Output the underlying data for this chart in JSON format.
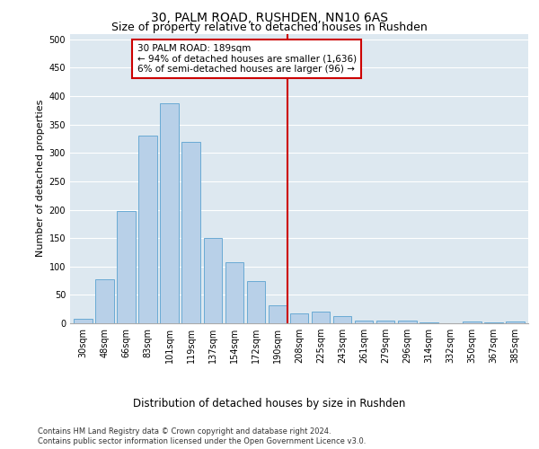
{
  "title": "30, PALM ROAD, RUSHDEN, NN10 6AS",
  "subtitle": "Size of property relative to detached houses in Rushden",
  "xlabel_bottom": "Distribution of detached houses by size in Rushden",
  "ylabel": "Number of detached properties",
  "categories": [
    "30sqm",
    "48sqm",
    "66sqm",
    "83sqm",
    "101sqm",
    "119sqm",
    "137sqm",
    "154sqm",
    "172sqm",
    "190sqm",
    "208sqm",
    "225sqm",
    "243sqm",
    "261sqm",
    "279sqm",
    "296sqm",
    "314sqm",
    "332sqm",
    "350sqm",
    "367sqm",
    "385sqm"
  ],
  "values": [
    8,
    78,
    197,
    330,
    388,
    320,
    150,
    108,
    75,
    31,
    17,
    20,
    12,
    5,
    5,
    4,
    1,
    0,
    3,
    1,
    3
  ],
  "bar_color": "#b8d0e8",
  "bar_edge_color": "#6aaad4",
  "bar_width": 0.85,
  "vline_color": "#cc0000",
  "annotation_lines": [
    "30 PALM ROAD: 189sqm",
    "← 94% of detached houses are smaller (1,636)",
    "6% of semi-detached houses are larger (96) →"
  ],
  "annotation_box_color": "#ffffff",
  "annotation_box_edge_color": "#cc0000",
  "ylim": [
    0,
    510
  ],
  "yticks": [
    0,
    50,
    100,
    150,
    200,
    250,
    300,
    350,
    400,
    450,
    500
  ],
  "background_color": "#dde8f0",
  "grid_color": "#ffffff",
  "footer_line1": "Contains HM Land Registry data © Crown copyright and database right 2024.",
  "footer_line2": "Contains public sector information licensed under the Open Government Licence v3.0.",
  "title_fontsize": 10,
  "subtitle_fontsize": 9,
  "ylabel_fontsize": 8,
  "xlabel_fontsize": 8.5,
  "tick_fontsize": 7,
  "annotation_fontsize": 7.5,
  "footer_fontsize": 6
}
